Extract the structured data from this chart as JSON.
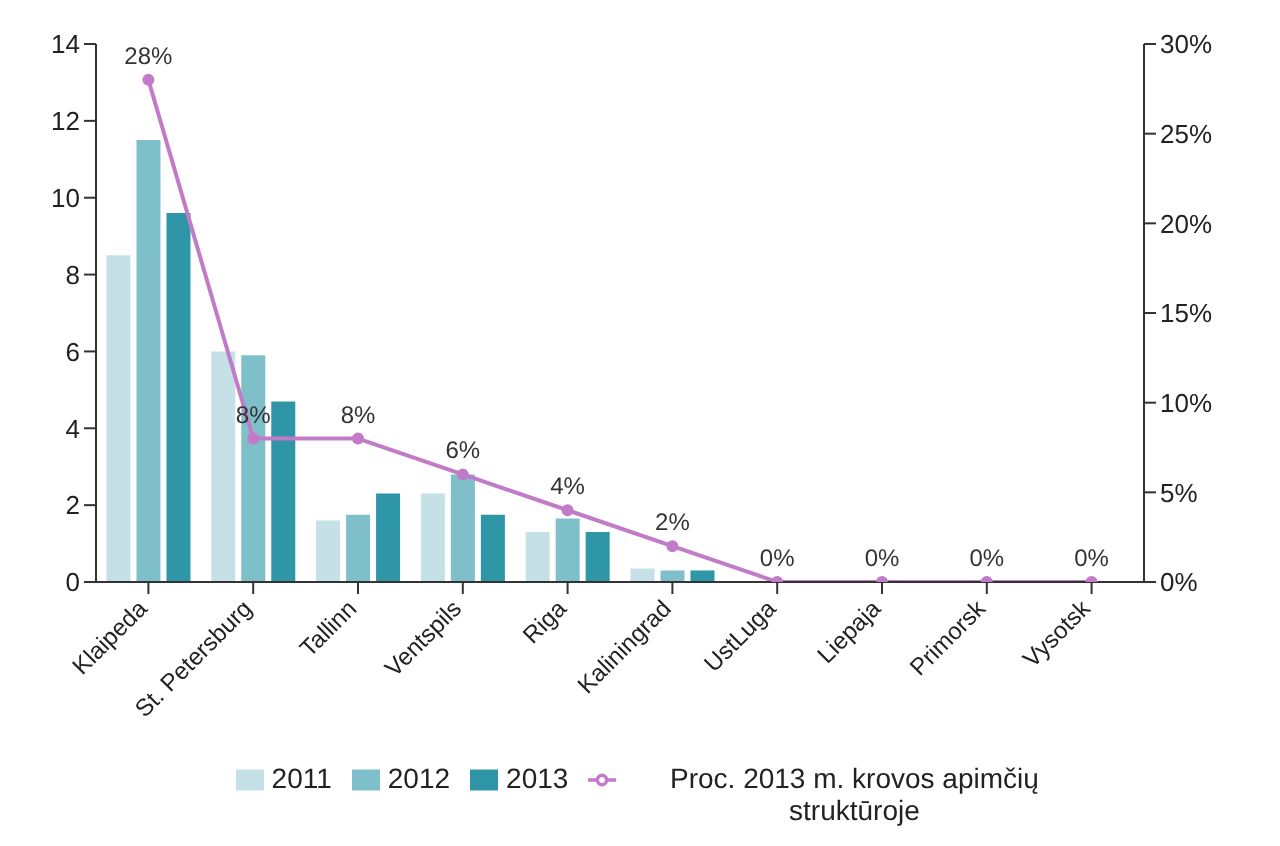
{
  "chart_data": {
    "type": "bar",
    "categories": [
      "Klaipeda",
      "St. Petersburg",
      "Tallinn",
      "Ventspils",
      "Riga",
      "Kaliningrad",
      "UstLuga",
      "Liepaja",
      "Primorsk",
      "Vysotsk"
    ],
    "series": [
      {
        "name": "2011",
        "color": "#c5e0e6",
        "values": [
          8.5,
          6.0,
          1.6,
          2.3,
          1.3,
          0.35,
          null,
          null,
          null,
          null
        ]
      },
      {
        "name": "2012",
        "color": "#7fbfca",
        "values": [
          11.5,
          5.9,
          1.75,
          2.8,
          1.65,
          0.3,
          null,
          null,
          null,
          null
        ]
      },
      {
        "name": "2013",
        "color": "#2e96a6",
        "values": [
          9.6,
          4.7,
          2.3,
          1.75,
          1.3,
          0.3,
          null,
          null,
          null,
          null
        ]
      },
      {
        "name": "Proc. 2013 m. krovos apimčių struktūroje",
        "type": "line",
        "axis": "y2",
        "color": "#c27bc8",
        "marker": "circle",
        "values": [
          28,
          8,
          8,
          6,
          4,
          2,
          0,
          0,
          0,
          0
        ],
        "value_labels": [
          "28%",
          "8%",
          "8%",
          "6%",
          "4%",
          "2%",
          "0%",
          "0%",
          "0%",
          "0%"
        ]
      }
    ],
    "ylim": [
      0,
      14
    ],
    "yticks": [
      0,
      2,
      4,
      6,
      8,
      10,
      12,
      14
    ],
    "y2lim": [
      0,
      30
    ],
    "y2ticks": [
      {
        "value": 0,
        "label": "0%"
      },
      {
        "value": 5,
        "label": "5%"
      },
      {
        "value": 10,
        "label": "10%"
      },
      {
        "value": 15,
        "label": "15%"
      },
      {
        "value": 20,
        "label": "20%"
      },
      {
        "value": 25,
        "label": "25%"
      },
      {
        "value": 30,
        "label": "30%"
      }
    ],
    "grid": false,
    "legend": "bottom"
  }
}
